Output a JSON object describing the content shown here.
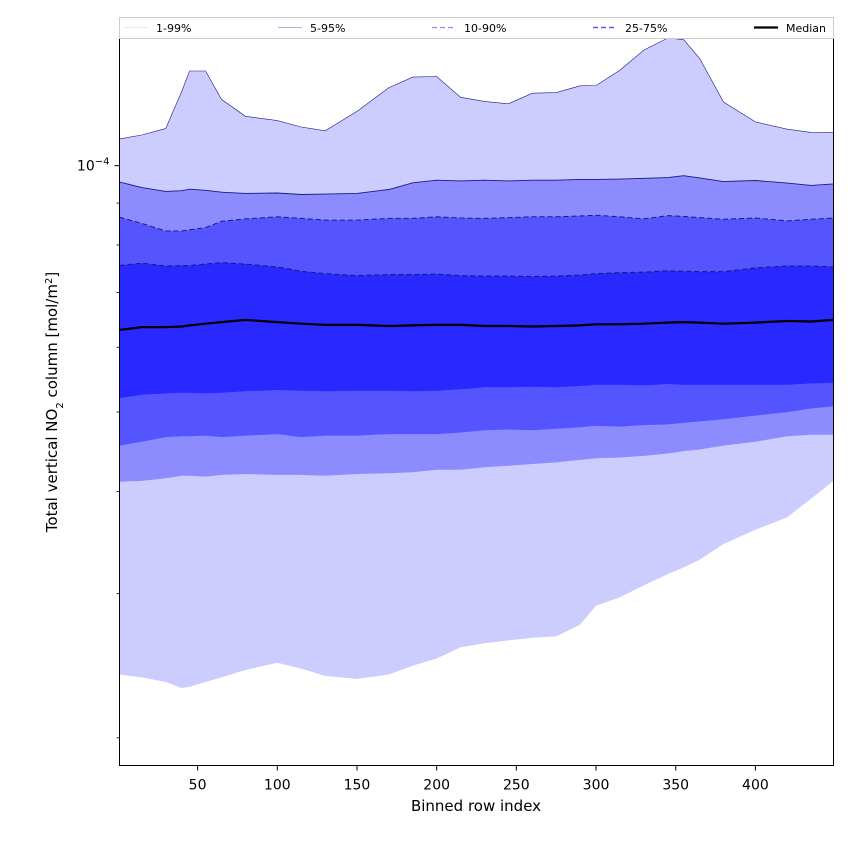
{
  "chart_data": {
    "type": "area",
    "xlabel": "Binned row index",
    "ylabel": "Total vertical NO₂ column [mol/m²]",
    "ylabel_parts": [
      "Total vertical NO",
      "2",
      " column [mol/m",
      "2",
      "]"
    ],
    "yscale": "log",
    "xlim": [
      1,
      449
    ],
    "ylim": [
      1.85e-05,
      0.000143
    ],
    "xticks": [
      50,
      100,
      150,
      200,
      250,
      300,
      350,
      400
    ],
    "yticks_major": [
      {
        "value": 0.0001,
        "base": "10",
        "exp": "−4"
      }
    ],
    "yticks_minor": [
      2e-05,
      3e-05,
      4e-05,
      5e-05,
      6e-05,
      7e-05,
      8e-05,
      9e-05
    ],
    "grid": false,
    "legend_position": "top, outside plot (single row)",
    "legend": [
      {
        "label": "1-99%",
        "color": "#e6e6fa",
        "style": "solid"
      },
      {
        "label": "5-95%",
        "color": "#b0b0f0",
        "style": "solid"
      },
      {
        "label": "10-90%",
        "color": "#8c8cf5",
        "style": "dashed"
      },
      {
        "label": "25-75%",
        "color": "#5a5af5",
        "style": "dashed"
      },
      {
        "label": "Median",
        "color": "#000000",
        "style": "solid"
      }
    ],
    "colors": {
      "band_1_99": "#ccccff",
      "band_5_95": "#8c8cff",
      "band_10_90": "#5555ff",
      "band_25_75": "#2828ff",
      "edge": "#1a1a80",
      "median": "#000000"
    },
    "x": [
      1,
      15,
      30,
      40,
      45,
      55,
      65,
      80,
      100,
      115,
      130,
      150,
      170,
      185,
      200,
      215,
      230,
      245,
      260,
      275,
      290,
      300,
      315,
      330,
      345,
      355,
      365,
      380,
      400,
      420,
      435,
      449
    ],
    "series": [
      {
        "name": "1-99%",
        "lower": [
          2.39e-05,
          2.37e-05,
          2.34e-05,
          2.3e-05,
          2.31e-05,
          2.34e-05,
          2.37e-05,
          2.42e-05,
          2.47e-05,
          2.43e-05,
          2.38e-05,
          2.36e-05,
          2.39e-05,
          2.45e-05,
          2.5e-05,
          2.58e-05,
          2.61e-05,
          2.63e-05,
          2.65e-05,
          2.66e-05,
          2.75e-05,
          2.9e-05,
          2.97e-05,
          3.07e-05,
          3.17e-05,
          3.23e-05,
          3.3e-05,
          3.45e-05,
          3.59e-05,
          3.72e-05,
          3.92e-05,
          4.12e-05
        ],
        "upper": [
          0.0001078,
          0.000109,
          0.000111,
          0.0001232,
          0.0001305,
          0.0001305,
          0.0001205,
          0.0001149,
          0.0001135,
          0.0001115,
          0.0001103,
          0.0001165,
          0.0001245,
          0.0001283,
          0.0001285,
          0.0001212,
          0.0001198,
          0.000119,
          0.0001226,
          0.0001228,
          0.0001252,
          0.0001253,
          0.0001308,
          0.0001384,
          0.0001432,
          0.0001425,
          0.0001352,
          0.0001196,
          0.0001131,
          0.0001108,
          0.0001098,
          0.0001097
        ]
      },
      {
        "name": "5-95%",
        "lower": [
          4.11e-05,
          4.12e-05,
          4.15e-05,
          4.18e-05,
          4.18e-05,
          4.17e-05,
          4.19e-05,
          4.2e-05,
          4.19e-05,
          4.19e-05,
          4.18e-05,
          4.2e-05,
          4.21e-05,
          4.22e-05,
          4.25e-05,
          4.25e-05,
          4.28e-05,
          4.3e-05,
          4.32e-05,
          4.34e-05,
          4.37e-05,
          4.39e-05,
          4.4e-05,
          4.42e-05,
          4.45e-05,
          4.48e-05,
          4.5e-05,
          4.55e-05,
          4.6e-05,
          4.67e-05,
          4.69e-05,
          4.69e-05
        ],
        "upper": [
          9.55e-05,
          9.4e-05,
          9.3e-05,
          9.32e-05,
          9.36e-05,
          9.33e-05,
          9.28e-05,
          9.25e-05,
          9.26e-05,
          9.22e-05,
          9.23e-05,
          9.25e-05,
          9.35e-05,
          9.53e-05,
          9.6e-05,
          9.58e-05,
          9.6e-05,
          9.58e-05,
          9.6e-05,
          9.6e-05,
          9.62e-05,
          9.62e-05,
          9.63e-05,
          9.65e-05,
          9.67e-05,
          9.72e-05,
          9.66e-05,
          9.56e-05,
          9.59e-05,
          9.52e-05,
          9.46e-05,
          9.5e-05
        ]
      },
      {
        "name": "10-90%",
        "lower": [
          4.55e-05,
          4.6e-05,
          4.66e-05,
          4.67e-05,
          4.67e-05,
          4.68e-05,
          4.66e-05,
          4.68e-05,
          4.7e-05,
          4.66e-05,
          4.68e-05,
          4.68e-05,
          4.7e-05,
          4.7e-05,
          4.7e-05,
          4.72e-05,
          4.75e-05,
          4.76e-05,
          4.75e-05,
          4.77e-05,
          4.79e-05,
          4.81e-05,
          4.8e-05,
          4.82e-05,
          4.83e-05,
          4.85e-05,
          4.87e-05,
          4.9e-05,
          4.95e-05,
          5e-05,
          5.05e-05,
          5.08e-05
        ],
        "upper": [
          8.65e-05,
          8.5e-05,
          8.32e-05,
          8.32e-05,
          8.35e-05,
          8.4e-05,
          8.55e-05,
          8.61e-05,
          8.66e-05,
          8.62e-05,
          8.58e-05,
          8.58e-05,
          8.62e-05,
          8.62e-05,
          8.66e-05,
          8.63e-05,
          8.62e-05,
          8.64e-05,
          8.66e-05,
          8.66e-05,
          8.68e-05,
          8.7e-05,
          8.66e-05,
          8.61e-05,
          8.69e-05,
          8.67e-05,
          8.64e-05,
          8.6e-05,
          8.63e-05,
          8.56e-05,
          8.6e-05,
          8.63e-05
        ]
      },
      {
        "name": "25-75%",
        "lower": [
          5.2e-05,
          5.25e-05,
          5.27e-05,
          5.28e-05,
          5.28e-05,
          5.27e-05,
          5.28e-05,
          5.3e-05,
          5.32e-05,
          5.31e-05,
          5.3e-05,
          5.31e-05,
          5.31e-05,
          5.3e-05,
          5.31e-05,
          5.33e-05,
          5.36e-05,
          5.36e-05,
          5.37e-05,
          5.36e-05,
          5.38e-05,
          5.4e-05,
          5.4e-05,
          5.39e-05,
          5.41e-05,
          5.4e-05,
          5.4e-05,
          5.4e-05,
          5.4e-05,
          5.4e-05,
          5.42e-05,
          5.43e-05
        ],
        "upper": [
          7.55e-05,
          7.6e-05,
          7.54e-05,
          7.55e-05,
          7.55e-05,
          7.58e-05,
          7.61e-05,
          7.58e-05,
          7.52e-05,
          7.43e-05,
          7.38e-05,
          7.34e-05,
          7.36e-05,
          7.36e-05,
          7.37e-05,
          7.34e-05,
          7.33e-05,
          7.33e-05,
          7.32e-05,
          7.33e-05,
          7.35e-05,
          7.38e-05,
          7.4e-05,
          7.41e-05,
          7.44e-05,
          7.43e-05,
          7.42e-05,
          7.42e-05,
          7.5e-05,
          7.54e-05,
          7.54e-05,
          7.52e-05
        ]
      },
      {
        "name": "Median",
        "values": [
          6.3e-05,
          6.35e-05,
          6.35e-05,
          6.36e-05,
          6.38e-05,
          6.41e-05,
          6.44e-05,
          6.48e-05,
          6.44e-05,
          6.41e-05,
          6.39e-05,
          6.39e-05,
          6.37e-05,
          6.38e-05,
          6.39e-05,
          6.39e-05,
          6.37e-05,
          6.37e-05,
          6.36e-05,
          6.37e-05,
          6.38e-05,
          6.4e-05,
          6.4e-05,
          6.41e-05,
          6.43e-05,
          6.44e-05,
          6.43e-05,
          6.41e-05,
          6.43e-05,
          6.46e-05,
          6.45e-05,
          6.48e-05
        ]
      }
    ]
  }
}
